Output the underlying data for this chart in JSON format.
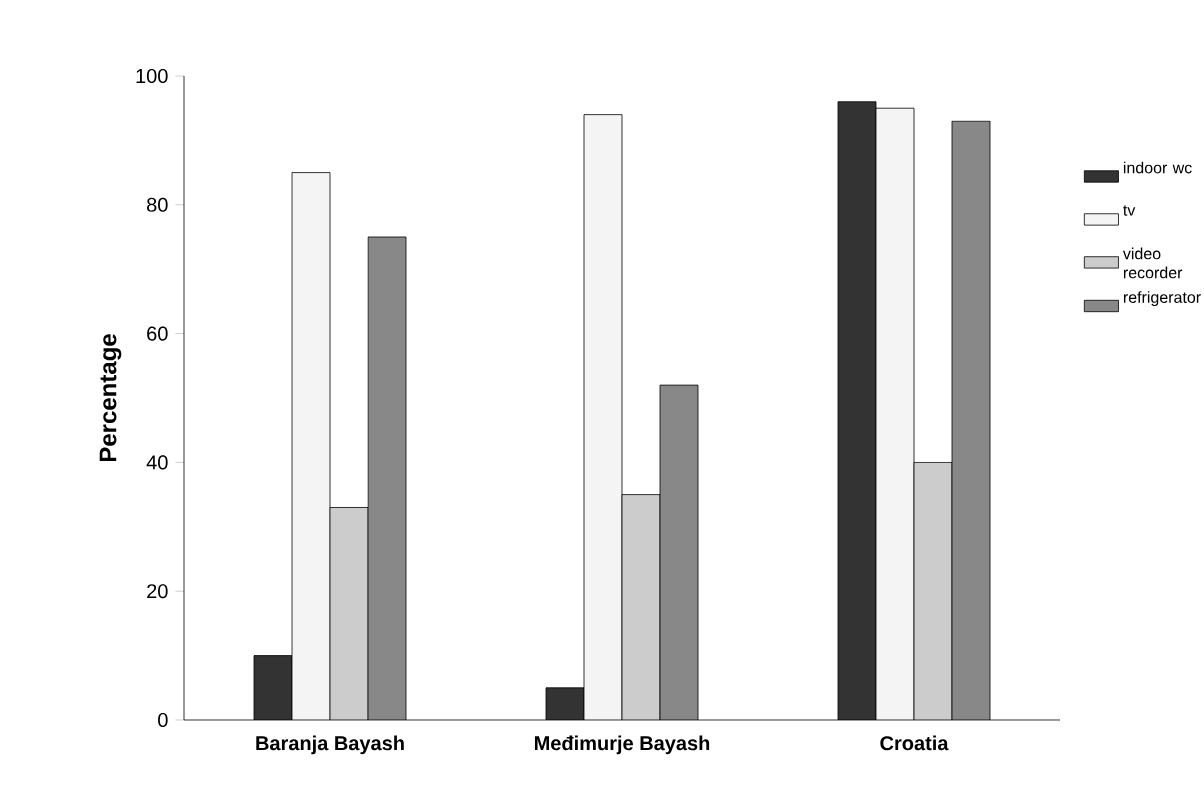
{
  "chart_data": {
    "type": "bar",
    "ylabel": "Percentage",
    "categories": [
      "Baranja Bayash",
      "Međimurje Bayash",
      "Croatia"
    ],
    "series": [
      {
        "name": "indoor wc",
        "color": "#333333",
        "values": [
          10,
          5,
          96
        ]
      },
      {
        "name": "tv",
        "color": "#f4f4f4",
        "values": [
          85,
          94,
          95
        ]
      },
      {
        "name": "video recorder",
        "color": "#cccccc",
        "values": [
          33,
          35,
          40
        ]
      },
      {
        "name": "refrigerator",
        "color": "#888888",
        "values": [
          75,
          52,
          93
        ]
      }
    ],
    "ylim": [
      0,
      100
    ],
    "yticks": [
      0,
      20,
      40,
      60,
      80,
      100
    ],
    "grid": false,
    "legend": "right"
  }
}
